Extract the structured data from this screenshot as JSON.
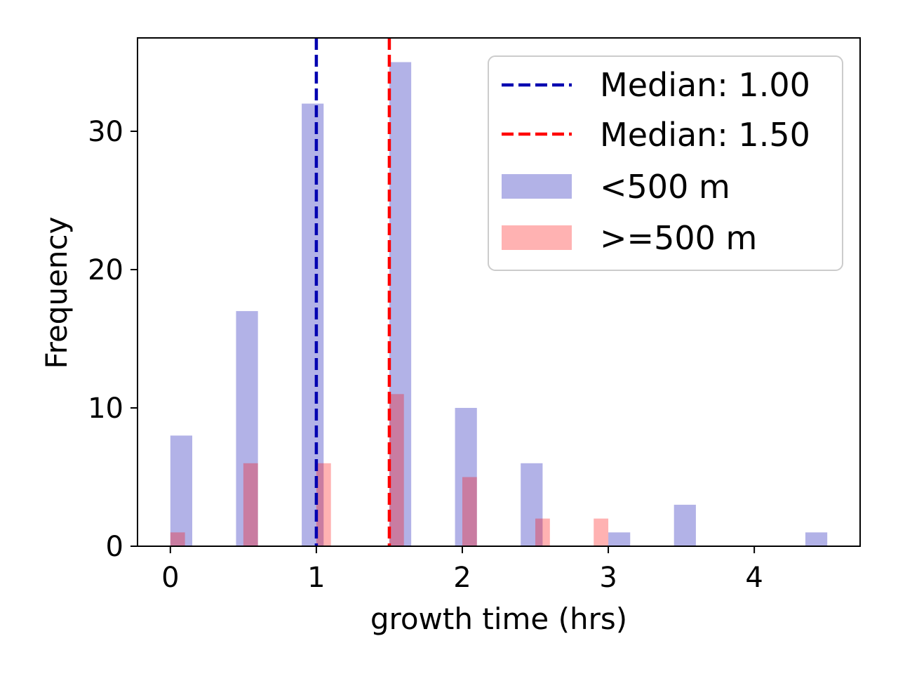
{
  "chart_data": {
    "type": "bar",
    "title": "",
    "xlabel": "growth time (hrs)",
    "ylabel": "Frequency",
    "xlim": [
      -0.225,
      4.725
    ],
    "ylim": [
      0,
      36.75
    ],
    "xticks": [
      0,
      1,
      2,
      3,
      4
    ],
    "xtick_labels": [
      "0",
      "1",
      "2",
      "3",
      "4"
    ],
    "yticks": [
      0,
      10,
      20,
      30
    ],
    "ytick_labels": [
      "0",
      "10",
      "20",
      "30"
    ],
    "grid": false,
    "legend_position": "top-right",
    "series": [
      {
        "name": "<500 m",
        "color": "#0000b0",
        "opacity": 0.3,
        "bins": [
          {
            "start": 0.0,
            "end": 0.15,
            "count": 8
          },
          {
            "start": 0.45,
            "end": 0.6,
            "count": 17
          },
          {
            "start": 0.9,
            "end": 1.05,
            "count": 32
          },
          {
            "start": 1.5,
            "end": 1.65,
            "count": 35
          },
          {
            "start": 1.95,
            "end": 2.1,
            "count": 10
          },
          {
            "start": 2.4,
            "end": 2.55,
            "count": 6
          },
          {
            "start": 3.0,
            "end": 3.15,
            "count": 1
          },
          {
            "start": 3.45,
            "end": 3.6,
            "count": 3
          },
          {
            "start": 4.35,
            "end": 4.5,
            "count": 1
          }
        ]
      },
      {
        "name": ">=500 m",
        "color": "#ff0000",
        "opacity": 0.3,
        "bins": [
          {
            "start": 0.0,
            "end": 0.1,
            "count": 1
          },
          {
            "start": 0.5,
            "end": 0.6,
            "count": 6
          },
          {
            "start": 1.0,
            "end": 1.1,
            "count": 6
          },
          {
            "start": 1.5,
            "end": 1.6,
            "count": 11
          },
          {
            "start": 2.0,
            "end": 2.1,
            "count": 5
          },
          {
            "start": 2.5,
            "end": 2.6,
            "count": 2
          },
          {
            "start": 2.9,
            "end": 3.0,
            "count": 2
          }
        ]
      }
    ],
    "median_lines": [
      {
        "value": 1.0,
        "label": "Median: 1.00",
        "color": "#0000b0"
      },
      {
        "value": 1.5,
        "label": "Median: 1.50",
        "color": "#ff0000"
      }
    ]
  }
}
